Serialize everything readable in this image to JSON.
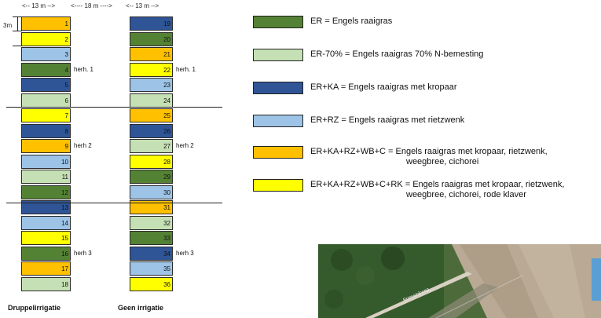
{
  "dimensions": {
    "left_width": "<-- 13 m -->",
    "middle_gap": "<---- 18 m ---->",
    "right_width": "<-- 13 m -->",
    "row_height": "3m"
  },
  "colors": {
    "ER": "#548235",
    "ER70": "#c5e0b4",
    "ERKA": "#2f5597",
    "ERRZ": "#9dc3e6",
    "ERKARZWBC": "#ffc000",
    "ERKARZWBCRK": "#ffff00"
  },
  "columns": {
    "left_title": "Druppelirrigatie",
    "right_title": "Geen irrigatie",
    "left_cells": [
      {
        "num": "1",
        "type": "ERKARZWBC"
      },
      {
        "num": "2",
        "type": "ERKARZWBCRK"
      },
      {
        "num": "3",
        "type": "ERRZ"
      },
      {
        "num": "4",
        "type": "ER"
      },
      {
        "num": "5",
        "type": "ERKA"
      },
      {
        "num": "6",
        "type": "ER70"
      },
      {
        "num": "7",
        "type": "ERKARZWBCRK"
      },
      {
        "num": "8",
        "type": "ERKA"
      },
      {
        "num": "9",
        "type": "ERKARZWBC"
      },
      {
        "num": "10",
        "type": "ERRZ"
      },
      {
        "num": "11",
        "type": "ER70"
      },
      {
        "num": "12",
        "type": "ER"
      },
      {
        "num": "13",
        "type": "ERKA"
      },
      {
        "num": "14",
        "type": "ERRZ"
      },
      {
        "num": "15",
        "type": "ERKARZWBCRK"
      },
      {
        "num": "16",
        "type": "ER"
      },
      {
        "num": "17",
        "type": "ERKARZWBC"
      },
      {
        "num": "18",
        "type": "ER70"
      }
    ],
    "right_cells": [
      {
        "num": "19",
        "type": "ERKA"
      },
      {
        "num": "20",
        "type": "ER"
      },
      {
        "num": "21",
        "type": "ERKARZWBC"
      },
      {
        "num": "22",
        "type": "ERKARZWBCRK"
      },
      {
        "num": "23",
        "type": "ERRZ"
      },
      {
        "num": "24",
        "type": "ER70"
      },
      {
        "num": "25",
        "type": "ERKARZWBC"
      },
      {
        "num": "26",
        "type": "ERKA"
      },
      {
        "num": "27",
        "type": "ER70"
      },
      {
        "num": "28",
        "type": "ERKARZWBCRK"
      },
      {
        "num": "29",
        "type": "ER"
      },
      {
        "num": "30",
        "type": "ERRZ"
      },
      {
        "num": "31",
        "type": "ERKARZWBC"
      },
      {
        "num": "32",
        "type": "ER70"
      },
      {
        "num": "33",
        "type": "ER"
      },
      {
        "num": "34",
        "type": "ERKA"
      },
      {
        "num": "35",
        "type": "ERRZ"
      },
      {
        "num": "36",
        "type": "ERKARZWBCRK"
      }
    ],
    "rep_labels": [
      "herh. 1",
      "herh 2",
      "herh 3"
    ],
    "rep_labels_right": [
      "herh. 1",
      "herh 2",
      "herh 3"
    ]
  },
  "legend": [
    {
      "type": "ER",
      "line1": "ER = Engels raaigras",
      "line2": ""
    },
    {
      "type": "ER70",
      "line1": "ER-70% = Engels raaigras 70% N-bemesting",
      "line2": ""
    },
    {
      "type": "ERKA",
      "line1": "ER+KA = Engels raaigras met kropaar",
      "line2": ""
    },
    {
      "type": "ERRZ",
      "line1": "ER+RZ = Engels raaigras met rietzwenk",
      "line2": ""
    },
    {
      "type": "ERKARZWBC",
      "line1": "ER+KA+RZ+WB+C = Engels raaigras met kropaar, rietzwenk,",
      "line2": "weegbree, cichorei"
    },
    {
      "type": "ERKARZWBCRK",
      "line1": "ER+KA+RZ+WB+C+RK = Engels raaigras met kropaar, rietzwenk,",
      "line2": "weegbree, cichorei, rode klaver"
    }
  ],
  "map": {
    "road_label": "Roessinkweg"
  }
}
